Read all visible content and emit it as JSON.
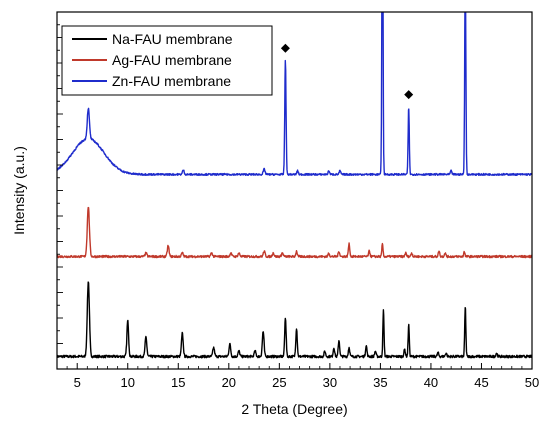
{
  "chart_data": {
    "type": "line",
    "xlabel": "2 Theta (Degree)",
    "ylabel": "Intensity (a.u.)",
    "xlim": [
      3,
      50
    ],
    "ylim": [
      0,
      100
    ],
    "x_ticks": [
      5,
      10,
      15,
      20,
      25,
      30,
      35,
      40,
      45,
      50
    ],
    "y_ticks_labeled": false,
    "legend_position": "top-left",
    "marker_symbol": "◆",
    "series": [
      {
        "name": "Na-FAU membrane",
        "color": "#000000",
        "baseline": 3.5,
        "noise": 0.35,
        "peaks": [
          [
            6.1,
            21,
            0.15
          ],
          [
            10.0,
            10,
            0.12
          ],
          [
            11.8,
            5.5,
            0.12
          ],
          [
            15.4,
            6.5,
            0.12
          ],
          [
            18.5,
            2.5,
            0.12
          ],
          [
            20.1,
            3.5,
            0.12
          ],
          [
            21.0,
            1.5,
            0.12
          ],
          [
            22.6,
            1.5,
            0.12
          ],
          [
            23.4,
            7,
            0.12
          ],
          [
            25.6,
            11,
            0.1
          ],
          [
            26.7,
            8,
            0.1
          ],
          [
            29.5,
            1.5,
            0.1
          ],
          [
            30.4,
            2.5,
            0.1
          ],
          [
            30.9,
            4.5,
            0.1
          ],
          [
            31.9,
            2.5,
            0.1
          ],
          [
            33.6,
            3,
            0.1
          ],
          [
            34.5,
            1.5,
            0.1
          ],
          [
            35.3,
            13,
            0.08
          ],
          [
            37.4,
            2,
            0.1
          ],
          [
            37.8,
            9,
            0.08
          ],
          [
            40.7,
            1,
            0.1
          ],
          [
            41.5,
            1,
            0.1
          ],
          [
            43.4,
            14,
            0.08
          ],
          [
            46.5,
            1,
            0.1
          ]
        ]
      },
      {
        "name": "Ag-FAU membrane",
        "color": "#c0392b",
        "baseline": 31.5,
        "noise": 0.3,
        "peaks": [
          [
            6.1,
            14,
            0.15
          ],
          [
            11.8,
            1,
            0.12
          ],
          [
            14.0,
            3,
            0.12
          ],
          [
            15.4,
            1,
            0.12
          ],
          [
            18.3,
            1,
            0.12
          ],
          [
            20.2,
            1,
            0.12
          ],
          [
            21.0,
            1,
            0.12
          ],
          [
            23.5,
            1.5,
            0.12
          ],
          [
            24.4,
            1,
            0.12
          ],
          [
            25.3,
            1,
            0.12
          ],
          [
            26.7,
            1.5,
            0.1
          ],
          [
            29.9,
            1,
            0.1
          ],
          [
            30.9,
            1.5,
            0.1
          ],
          [
            31.9,
            3.5,
            0.1
          ],
          [
            33.9,
            1.5,
            0.1
          ],
          [
            35.2,
            3.5,
            0.08
          ],
          [
            37.5,
            1,
            0.1
          ],
          [
            38.1,
            1,
            0.1
          ],
          [
            40.8,
            1.5,
            0.1
          ],
          [
            41.4,
            1,
            0.1
          ],
          [
            43.3,
            1.5,
            0.08
          ]
        ]
      },
      {
        "name": "Zn-FAU membrane",
        "color": "#1f2ccc",
        "baseline": 54.5,
        "noise": 0.25,
        "hump": {
          "x": 6.1,
          "height": 10,
          "width": 2.2
        },
        "peaks": [
          [
            6.1,
            8.5,
            0.15
          ],
          [
            15.5,
            1.2,
            0.12
          ],
          [
            23.5,
            1.5,
            0.12
          ],
          [
            25.6,
            32,
            0.09
          ],
          [
            26.8,
            1,
            0.1
          ],
          [
            29.9,
            1,
            0.1
          ],
          [
            31.0,
            1,
            0.1
          ],
          [
            35.2,
            83,
            0.08
          ],
          [
            37.8,
            19,
            0.08
          ],
          [
            42.0,
            1,
            0.1
          ],
          [
            43.4,
            58,
            0.08
          ]
        ]
      }
    ],
    "marked_peaks": [
      25.6,
      35.2,
      37.8,
      43.4
    ]
  }
}
